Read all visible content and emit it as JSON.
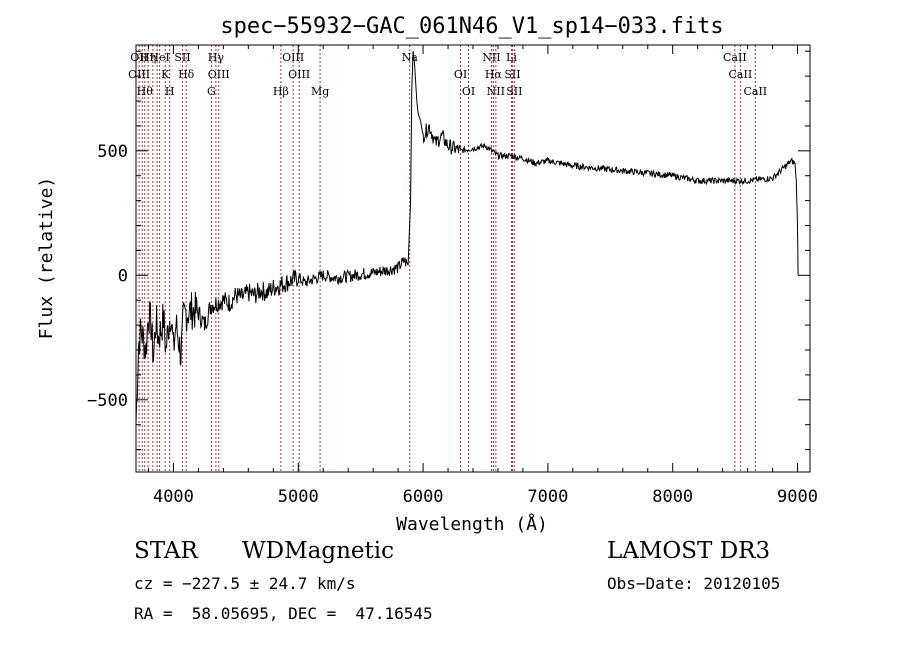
{
  "chart_data": {
    "type": "line",
    "title": "spec−55932−GAC_061N46_V1_sp14−033.fits",
    "xlabel": "Wavelength (Å)",
    "ylabel": "Flux (relative)",
    "xlim": [
      3700,
      9100
    ],
    "ylim": [
      -790,
      925
    ],
    "xticks": [
      4000,
      5000,
      6000,
      7000,
      8000,
      9000
    ],
    "yticks": [
      -500,
      0,
      500
    ],
    "xtick_labels": [
      "4000",
      "5000",
      "6000",
      "7000",
      "8000",
      "9000"
    ],
    "ytick_labels": [
      "−500",
      "0",
      "500"
    ],
    "grid": false,
    "line_color": "#000000",
    "marker_color": "#b03030",
    "series": [
      {
        "x": [
          3700,
          3720,
          3740,
          3760,
          3780,
          3800,
          3820,
          3840,
          3860,
          3880,
          3900,
          3920,
          3940,
          3960,
          3980,
          4000,
          4020,
          4040,
          4060,
          4080,
          4100,
          4150,
          4200,
          4250,
          4300,
          4350,
          4400,
          4450,
          4500,
          4550,
          4600,
          4650,
          4700,
          4750,
          4800,
          4850,
          4900,
          4950,
          5000,
          5050,
          5100,
          5150,
          5200,
          5300,
          5400,
          5500,
          5600,
          5700,
          5800,
          5850,
          5880,
          5900,
          5910,
          5920,
          5930,
          5940,
          5950,
          5960,
          5980,
          6000,
          6050,
          6100,
          6150,
          6200,
          6300,
          6400,
          6500,
          6600,
          6700,
          6800,
          6900,
          7000,
          7200,
          7400,
          7600,
          7800,
          8000,
          8200,
          8400,
          8600,
          8800,
          8950,
          8980,
          8990,
          9000,
          9005
        ],
        "y": [
          -600,
          -280,
          -220,
          -260,
          -300,
          -150,
          -200,
          -330,
          -180,
          -250,
          -220,
          -170,
          -300,
          -200,
          -150,
          -300,
          -200,
          -250,
          -320,
          -180,
          -150,
          -140,
          -150,
          -200,
          -120,
          -110,
          -100,
          -110,
          -80,
          -90,
          -70,
          -80,
          -60,
          -70,
          -50,
          -40,
          -30,
          -20,
          -10,
          -30,
          -20,
          -10,
          0,
          -10,
          -5,
          5,
          10,
          20,
          30,
          60,
          40,
          300,
          750,
          900,
          860,
          780,
          700,
          650,
          620,
          560,
          600,
          530,
          560,
          520,
          500,
          510,
          520,
          480,
          480,
          470,
          450,
          460,
          440,
          430,
          420,
          410,
          400,
          380,
          380,
          380,
          390,
          460,
          450,
          380,
          200,
          0
        ]
      }
    ],
    "lines": [
      {
        "wl": 3725,
        "labels": [
          "OII",
          "OIII"
        ]
      },
      {
        "wl": 3750,
        "labels": []
      },
      {
        "wl": 3770,
        "labels": [
          "Hθ"
        ]
      },
      {
        "wl": 3797,
        "labels": [
          "Hη"
        ]
      },
      {
        "wl": 3835,
        "labels": []
      },
      {
        "wl": 3869,
        "labels": []
      },
      {
        "wl": 3889,
        "labels": [
          "HeI"
        ]
      },
      {
        "wl": 3934,
        "labels": [
          "K"
        ]
      },
      {
        "wl": 3970,
        "labels": [
          "H"
        ]
      },
      {
        "wl": 4072,
        "labels": [
          "SII"
        ]
      },
      {
        "wl": 4102,
        "labels": [
          "Hδ"
        ]
      },
      {
        "wl": 4304,
        "labels": [
          "G"
        ]
      },
      {
        "wl": 4340,
        "labels": [
          "Hγ"
        ]
      },
      {
        "wl": 4363,
        "labels": [
          "OIII"
        ]
      },
      {
        "wl": 4861,
        "labels": [
          "Hβ"
        ]
      },
      {
        "wl": 4959,
        "labels": [
          "OIII"
        ]
      },
      {
        "wl": 5007,
        "labels": [
          "OIII"
        ]
      },
      {
        "wl": 5175,
        "labels": [
          "Mg"
        ]
      },
      {
        "wl": 5893,
        "labels": [
          "Na"
        ]
      },
      {
        "wl": 6300,
        "labels": [
          "OI"
        ]
      },
      {
        "wl": 6364,
        "labels": [
          "OI"
        ]
      },
      {
        "wl": 6548,
        "labels": [
          "NII"
        ]
      },
      {
        "wl": 6563,
        "labels": [
          "Hα"
        ]
      },
      {
        "wl": 6583,
        "labels": [
          "NII"
        ]
      },
      {
        "wl": 6708,
        "labels": [
          "Li"
        ]
      },
      {
        "wl": 6716,
        "labels": [
          "SII"
        ]
      },
      {
        "wl": 6731,
        "labels": [
          "SII"
        ]
      },
      {
        "wl": 8498,
        "labels": [
          "CaII"
        ]
      },
      {
        "wl": 8542,
        "labels": [
          "CaII"
        ]
      },
      {
        "wl": 8662,
        "labels": [
          "CaII"
        ]
      }
    ]
  },
  "info": {
    "object_class": "STAR",
    "subclass": "WDMagnetic",
    "survey": "LAMOST DR3",
    "cz": "cz = −227.5 ± 24.7 km/s",
    "obs_date": "Obs−Date: 20120105",
    "coords": "RA =  58.05695, DEC =  47.16545"
  }
}
